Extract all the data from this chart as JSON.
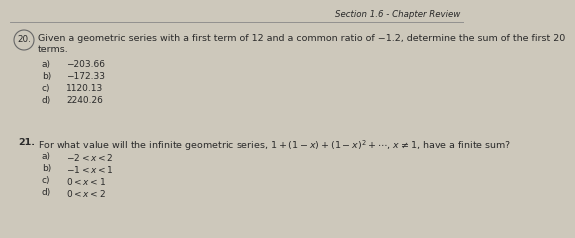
{
  "header": "Section 1.6 - Chapter Review",
  "bg_color": "#cdc8bb",
  "text_color": "#2a2a2a",
  "font_size_body": 6.8,
  "font_size_header": 6.2,
  "font_size_options": 6.5,
  "q20_line1": "Given a geometric series with a first term of 12 and a common ratio of −1.2, determine the sum of the first 20",
  "q20_line2": "terms.",
  "q20_opts": [
    [
      "−203.66",
      "a)"
    ],
    [
      "−172.33",
      "b)"
    ],
    [
      "1120.13",
      "c)"
    ],
    [
      "2240.26",
      "d)"
    ]
  ],
  "q21_line": "For what value will the infinite geometric series, $1+(1-x)+(1-x)^2+\\cdots$, $x\\neq 1$, have a finite sum?",
  "q21_opts": [
    [
      "$-2 < x < 2$",
      "a)"
    ],
    [
      "$-1 < x < 1$",
      "b)"
    ],
    [
      "$0 < x < 1$",
      "c)"
    ],
    [
      "$0 < x < 2$",
      "d)"
    ]
  ]
}
